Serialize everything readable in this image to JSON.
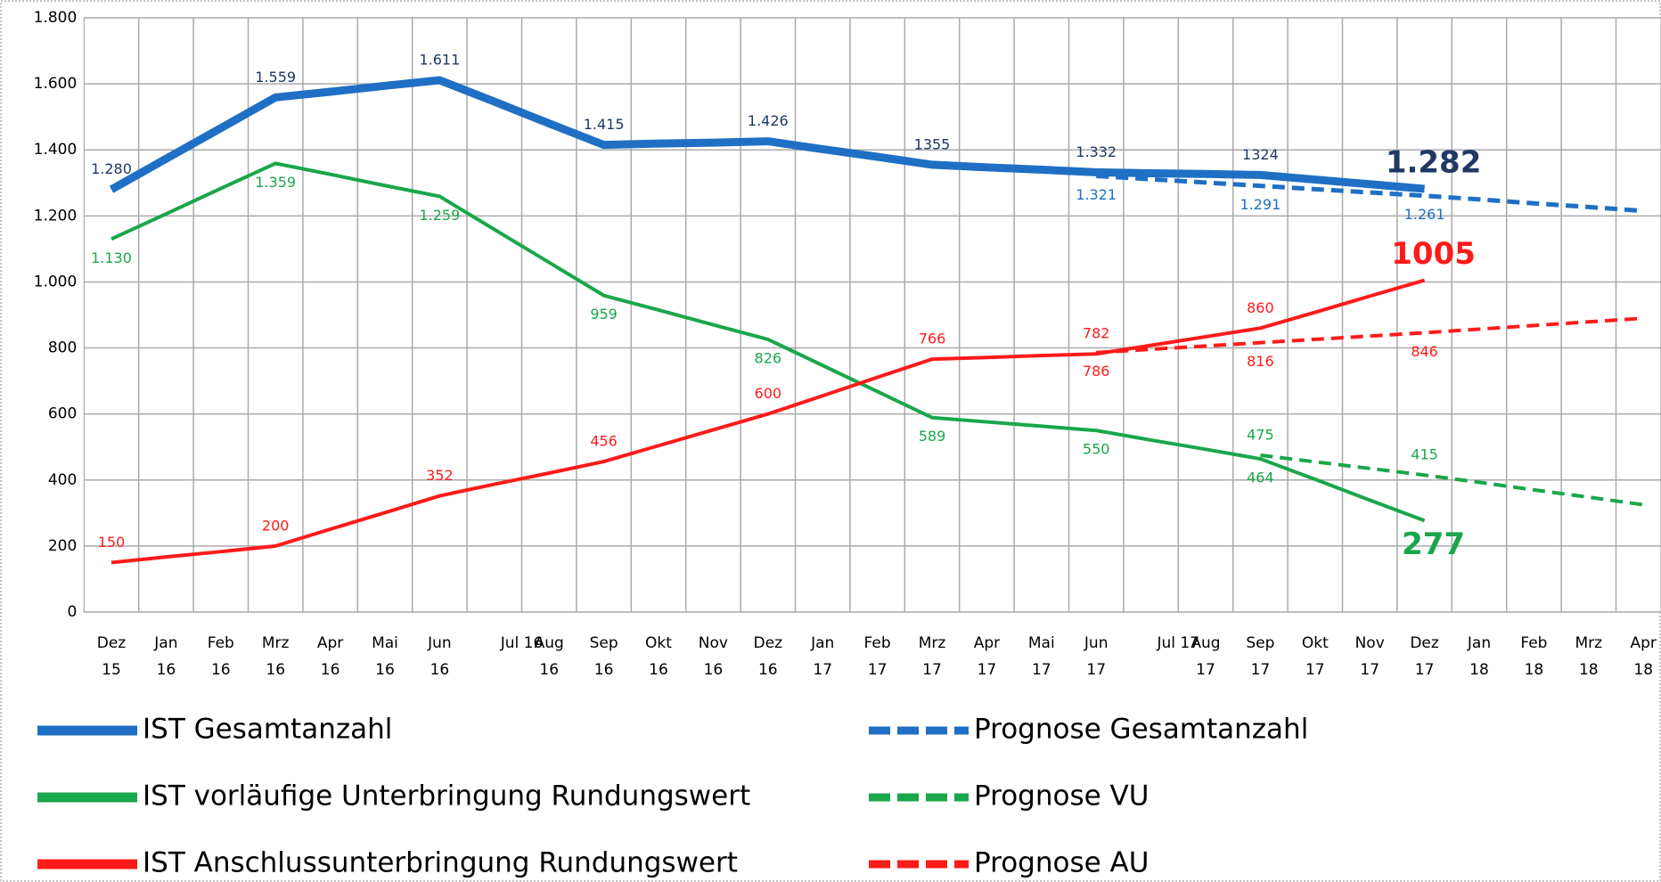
{
  "chart_data": {
    "type": "line",
    "categories": [
      [
        "Dez",
        "15"
      ],
      [
        "Jan",
        "16"
      ],
      [
        "Feb",
        "16"
      ],
      [
        "Mrz",
        "16"
      ],
      [
        "Apr",
        "16"
      ],
      [
        "Mai",
        "16"
      ],
      [
        "Jun",
        "16"
      ],
      [
        "Jul 16"
      ],
      [
        "Aug",
        "16"
      ],
      [
        "Sep",
        "16"
      ],
      [
        "Okt",
        "16"
      ],
      [
        "Nov",
        "16"
      ],
      [
        "Dez",
        "16"
      ],
      [
        "Jan",
        "17"
      ],
      [
        "Feb",
        "17"
      ],
      [
        "Mrz",
        "17"
      ],
      [
        "Apr",
        "17"
      ],
      [
        "Mai",
        "17"
      ],
      [
        "Jun",
        "17"
      ],
      [
        "Jul 17"
      ],
      [
        "Aug",
        "17"
      ],
      [
        "Sep",
        "17"
      ],
      [
        "Okt",
        "17"
      ],
      [
        "Nov",
        "17"
      ],
      [
        "Dez",
        "17"
      ],
      [
        "Jan",
        "18"
      ],
      [
        "Feb",
        "18"
      ],
      [
        "Mrz",
        "18"
      ],
      [
        "Apr",
        "18"
      ]
    ],
    "ylim": [
      0,
      1800
    ],
    "yticks": [
      0,
      200,
      400,
      600,
      800,
      {
        "value": 1000,
        "label": "1.000"
      },
      {
        "value": 1200,
        "label": "1.200"
      },
      {
        "value": 1400,
        "label": "1.400"
      },
      {
        "value": 1600,
        "label": "1.600"
      },
      {
        "value": 1800,
        "label": "1.800"
      }
    ],
    "grid": true,
    "series": [
      {
        "name": "IST Gesamtanzahl",
        "color": "#1f6fc5",
        "label_color": "#1f3864",
        "line_width": 9,
        "dash": false,
        "label_position": "above",
        "values": [
          1280,
          1373,
          1466,
          1559,
          1576,
          1594,
          1611,
          1546,
          1480,
          1415,
          1419,
          1422,
          1426,
          1402,
          1379,
          1355,
          1347,
          1340,
          1332,
          1329,
          1327,
          1324,
          1310,
          1296,
          1282,
          null,
          null,
          null,
          null
        ],
        "value_labels": [
          "1.280",
          null,
          null,
          "1.559",
          null,
          null,
          "1.611",
          null,
          null,
          "1.415",
          null,
          null,
          "1.426",
          null,
          null,
          "1355",
          null,
          null,
          "1.332",
          null,
          null,
          "1324",
          null,
          null,
          "1.282",
          null,
          null,
          null,
          null
        ]
      },
      {
        "name": "IST vorläufige Unterbringung Rundungswert",
        "color": "#1aa64a",
        "label_color": "#1aa64a",
        "line_width": 4,
        "dash": false,
        "label_position": "below",
        "values": [
          1130,
          1206,
          1283,
          1359,
          1326,
          1292,
          1259,
          1159,
          1059,
          959,
          915,
          870,
          826,
          747,
          668,
          589,
          576,
          563,
          550,
          521,
          493,
          464,
          402,
          339,
          277,
          null,
          null,
          null,
          null
        ],
        "value_labels": [
          "1.130",
          null,
          null,
          "1.359",
          null,
          null,
          "1.259",
          null,
          null,
          "959",
          null,
          null,
          "826",
          null,
          null,
          "589",
          null,
          null,
          "550",
          null,
          null,
          "464",
          null,
          null,
          "277",
          null,
          null,
          null,
          null
        ]
      },
      {
        "name": "IST Anschlussunterbringung Rundungswert",
        "color": "#ff1a1a",
        "label_color": "#ff1a1a",
        "line_width": 4,
        "dash": false,
        "label_position": "above",
        "values": [
          150,
          167,
          183,
          200,
          251,
          301,
          352,
          387,
          421,
          456,
          504,
          552,
          600,
          655,
          711,
          766,
          771,
          777,
          782,
          808,
          834,
          860,
          908,
          957,
          1005,
          null,
          null,
          null,
          null
        ],
        "value_labels": [
          "150",
          null,
          null,
          "200",
          null,
          null,
          "352",
          null,
          null,
          "456",
          null,
          null,
          "600",
          null,
          null,
          "766",
          null,
          null,
          "782",
          null,
          null,
          "860",
          null,
          null,
          "1005",
          null,
          null,
          null,
          null
        ]
      },
      {
        "name": "Prognose Gesamtanzahl",
        "color": "#1f6fc5",
        "label_color": "#1f6fc5",
        "line_width": 5,
        "dash": true,
        "label_position": "below",
        "values": [
          null,
          null,
          null,
          null,
          null,
          null,
          null,
          null,
          null,
          null,
          null,
          null,
          null,
          null,
          null,
          null,
          null,
          null,
          1321,
          1311,
          1301,
          1291,
          1281,
          1271,
          1261,
          1250,
          1238,
          1227,
          1215
        ],
        "value_labels": [
          null,
          null,
          null,
          null,
          null,
          null,
          null,
          null,
          null,
          null,
          null,
          null,
          null,
          null,
          null,
          null,
          null,
          null,
          "1.321",
          null,
          null,
          "1.291",
          null,
          null,
          "1.261",
          null,
          null,
          null,
          null
        ]
      },
      {
        "name": "Prognose VU",
        "color": "#1aa64a",
        "label_color": "#1aa64a",
        "line_width": 4,
        "dash": true,
        "label_position": "above",
        "values": [
          null,
          null,
          null,
          null,
          null,
          null,
          null,
          null,
          null,
          null,
          null,
          null,
          null,
          null,
          null,
          null,
          null,
          null,
          null,
          null,
          null,
          475,
          455,
          435,
          415,
          393,
          370,
          348,
          325
        ],
        "value_labels": [
          null,
          null,
          null,
          null,
          null,
          null,
          null,
          null,
          null,
          null,
          null,
          null,
          null,
          null,
          null,
          null,
          null,
          null,
          null,
          null,
          null,
          "475",
          null,
          null,
          "415",
          null,
          null,
          null,
          null
        ]
      },
      {
        "name": "Prognose AU",
        "color": "#ff1a1a",
        "label_color": "#ff1a1a",
        "line_width": 4,
        "dash": true,
        "label_position": "below",
        "values": [
          null,
          null,
          null,
          null,
          null,
          null,
          null,
          null,
          null,
          null,
          null,
          null,
          null,
          null,
          null,
          null,
          null,
          null,
          786,
          796,
          806,
          816,
          826,
          836,
          846,
          857,
          868,
          879,
          890
        ],
        "value_labels": [
          null,
          null,
          null,
          null,
          null,
          null,
          null,
          null,
          null,
          null,
          null,
          null,
          null,
          null,
          null,
          null,
          null,
          null,
          "786",
          null,
          null,
          "816",
          null,
          null,
          "846",
          null,
          null,
          null,
          null
        ]
      }
    ]
  }
}
